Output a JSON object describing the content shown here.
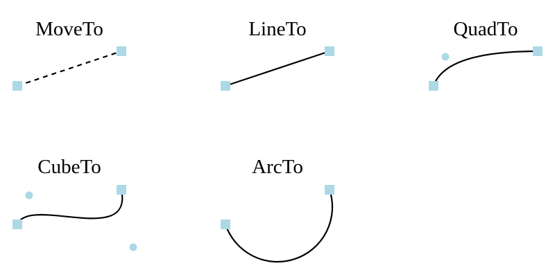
{
  "colors": {
    "background": "#ffffff",
    "stroke": "#000000",
    "marker": "#add8e6"
  },
  "diagram": {
    "panels": [
      {
        "id": "moveto",
        "label": "MoveTo",
        "line_style": "dashed"
      },
      {
        "id": "lineto",
        "label": "LineTo",
        "line_style": "solid"
      },
      {
        "id": "quadto",
        "label": "QuadTo",
        "line_style": "solid"
      },
      {
        "id": "cubeto",
        "label": "CubeTo",
        "line_style": "solid"
      },
      {
        "id": "arcto",
        "label": "ArcTo",
        "line_style": "solid"
      }
    ]
  }
}
